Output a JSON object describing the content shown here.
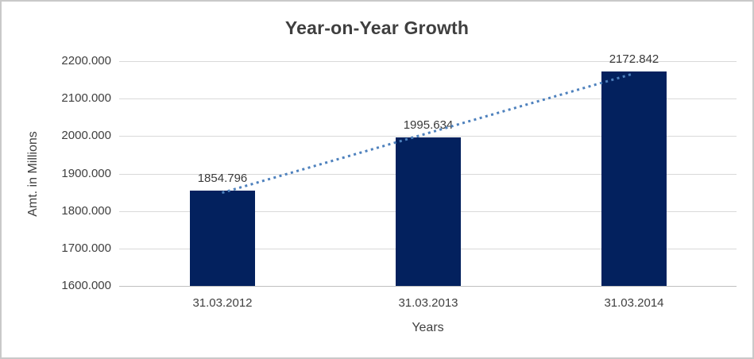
{
  "chart_data": {
    "type": "bar",
    "title": "Year-on-Year Growth",
    "xlabel": "Years",
    "ylabel": "Amt. in Millions",
    "categories": [
      "31.03.2012",
      "31.03.2013",
      "31.03.2014"
    ],
    "values": [
      1854.796,
      1995.634,
      2172.842
    ],
    "value_labels": [
      "1854.796",
      "1995.634",
      "2172.842"
    ],
    "ylim": [
      1600,
      2200
    ],
    "ytick_step": 100,
    "ytick_labels": [
      "2200.000",
      "2100.000",
      "2000.000",
      "1900.000",
      "1800.000",
      "1700.000",
      "1600.000"
    ],
    "grid": true,
    "legend": false,
    "trendline": {
      "type": "linear",
      "style": "dotted"
    },
    "style": {
      "bar_color": "#03215e",
      "trendline_color": "#4e81bd",
      "gridline_color": "#d9d9d9",
      "axisline_color": "#c0c0c0",
      "text_color": "#404040",
      "title_color": "#3f3f3f",
      "border_color": "#c9c9c9",
      "background": "#ffffff"
    }
  }
}
